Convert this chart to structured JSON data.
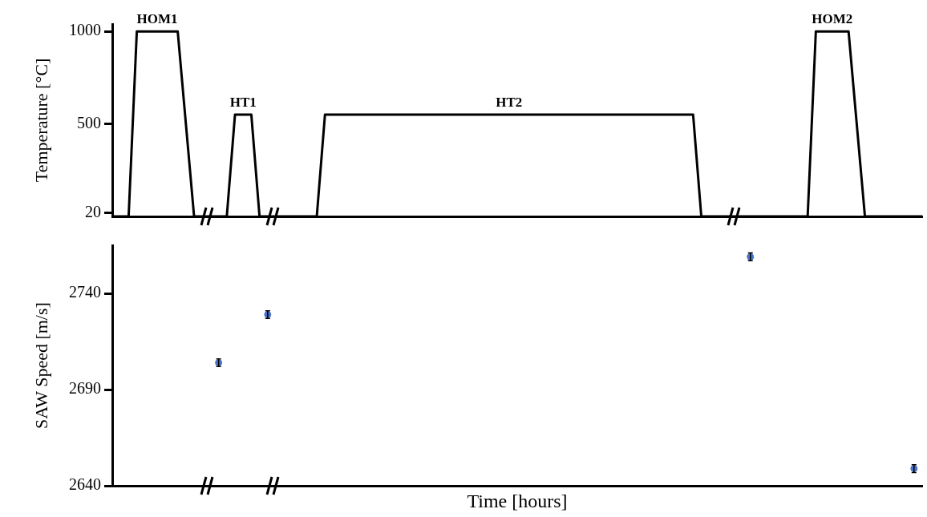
{
  "chart_data": [
    {
      "type": "line",
      "ylabel": "Temperature [°C]",
      "categories": [
        null,
        null,
        null,
        null,
        null,
        null,
        null,
        null,
        null,
        null,
        null,
        null,
        null,
        null,
        null,
        null,
        null,
        null,
        null,
        null,
        null,
        null,
        null,
        null,
        null,
        null,
        null,
        null,
        null,
        null,
        null,
        null,
        null,
        null,
        null,
        null,
        null,
        null,
        null,
        null,
        null,
        null,
        null,
        null,
        null,
        null,
        null,
        null,
        null,
        null,
        null,
        null,
        null,
        null,
        null,
        null,
        null,
        null,
        null,
        null,
        null,
        null,
        null,
        null,
        null,
        null,
        null,
        null,
        null,
        null,
        null,
        null,
        null,
        null,
        null,
        null,
        null,
        null,
        null,
        null,
        null,
        null,
        null,
        null,
        null,
        null,
        null,
        null,
        null,
        null,
        null,
        null,
        null,
        null,
        null,
        null,
        null,
        null,
        null,
        null
      ],
      "series": [
        {
          "color": "#000000",
          "values": [
            0,
            0,
            0,
            1000,
            1000,
            1000,
            1000,
            1000,
            1000,
            500,
            0,
            0,
            0,
            0,
            0,
            550,
            550,
            550,
            0,
            0,
            0,
            0,
            0,
            0,
            0,
            0,
            550,
            550,
            550,
            550,
            550,
            550,
            550,
            550,
            550,
            550,
            550,
            550,
            550,
            550,
            550,
            550,
            550,
            550,
            550,
            550,
            550,
            550,
            550,
            550,
            550,
            550,
            550,
            550,
            550,
            550,
            550,
            550,
            550,
            550,
            550,
            550,
            550,
            550,
            550,
            550,
            550,
            550,
            550,
            550,
            550,
            550,
            0,
            0,
            0,
            0,
            0,
            0,
            0,
            0,
            0,
            0,
            0,
            0,
            0,
            0,
            1000,
            1000,
            1000,
            1000,
            1000,
            500,
            0,
            0,
            0,
            0,
            0,
            0,
            0,
            0
          ]
        }
      ],
      "ylim": [
        0,
        1040
      ],
      "yticks": [
        20,
        500,
        1000
      ],
      "tick_labels": "y",
      "marker": "none",
      "annotations": [
        "HOM1",
        "HT1",
        "HT2",
        "HOM2"
      ]
    },
    {
      "type": "scatter",
      "xlabel": "Time [hours]",
      "ylabel": "SAW Speed [m/s]",
      "categories": [
        null,
        null,
        null,
        null,
        null,
        null,
        null,
        null,
        null,
        null,
        null,
        null,
        null,
        null,
        null,
        null,
        null,
        null,
        null,
        null,
        null,
        null,
        null,
        null,
        null,
        null,
        null,
        null,
        null,
        null,
        null,
        null,
        null,
        null,
        null,
        null,
        null,
        null,
        null,
        null,
        null,
        null,
        null,
        null,
        null,
        null,
        null,
        null,
        null,
        null,
        null,
        null,
        null,
        null,
        null,
        null,
        null,
        null,
        null,
        null,
        null,
        null,
        null,
        null,
        null,
        null,
        null,
        null,
        null,
        null,
        null,
        null,
        null,
        null,
        null,
        null,
        null,
        null,
        null,
        null,
        null,
        null,
        null,
        null,
        null,
        null,
        null,
        null,
        null,
        null,
        null,
        null,
        null,
        null,
        null,
        null,
        null,
        null,
        null,
        null
      ],
      "series": [
        {
          "color": "#4a72c8",
          "values": [
            null,
            null,
            null,
            null,
            null,
            null,
            null,
            null,
            null,
            null,
            null,
            null,
            null,
            2704,
            null,
            null,
            null,
            null,
            null,
            2729,
            null,
            null,
            null,
            null,
            null,
            null,
            null,
            null,
            null,
            null,
            null,
            null,
            null,
            null,
            null,
            null,
            null,
            null,
            null,
            null,
            null,
            null,
            null,
            null,
            null,
            null,
            null,
            null,
            null,
            null,
            null,
            null,
            null,
            null,
            null,
            null,
            null,
            null,
            null,
            null,
            null,
            null,
            null,
            null,
            null,
            null,
            null,
            null,
            null,
            null,
            null,
            null,
            null,
            null,
            null,
            null,
            null,
            null,
            2759,
            null,
            null,
            null,
            null,
            null,
            null,
            null,
            null,
            null,
            null,
            null,
            null,
            null,
            null,
            null,
            null,
            null,
            null,
            null,
            2649,
            null
          ],
          "errors": [
            null,
            null,
            null,
            null,
            null,
            null,
            null,
            null,
            null,
            null,
            null,
            null,
            null,
            2,
            null,
            null,
            null,
            null,
            null,
            2,
            null,
            null,
            null,
            null,
            null,
            null,
            null,
            null,
            null,
            null,
            null,
            null,
            null,
            null,
            null,
            null,
            null,
            null,
            null,
            null,
            null,
            null,
            null,
            null,
            null,
            null,
            null,
            null,
            null,
            null,
            null,
            null,
            null,
            null,
            null,
            null,
            null,
            null,
            null,
            null,
            null,
            null,
            null,
            null,
            null,
            null,
            null,
            null,
            null,
            null,
            null,
            null,
            null,
            null,
            null,
            null,
            null,
            null,
            2,
            null,
            null,
            null,
            null,
            null,
            null,
            null,
            null,
            null,
            null,
            null,
            null,
            null,
            null,
            null,
            null,
            null,
            null,
            null,
            2,
            null
          ]
        }
      ],
      "ylim": [
        2640,
        2765
      ],
      "yticks": [
        2640,
        2690,
        2740
      ],
      "tick_labels": "y",
      "marker": "circle"
    }
  ]
}
